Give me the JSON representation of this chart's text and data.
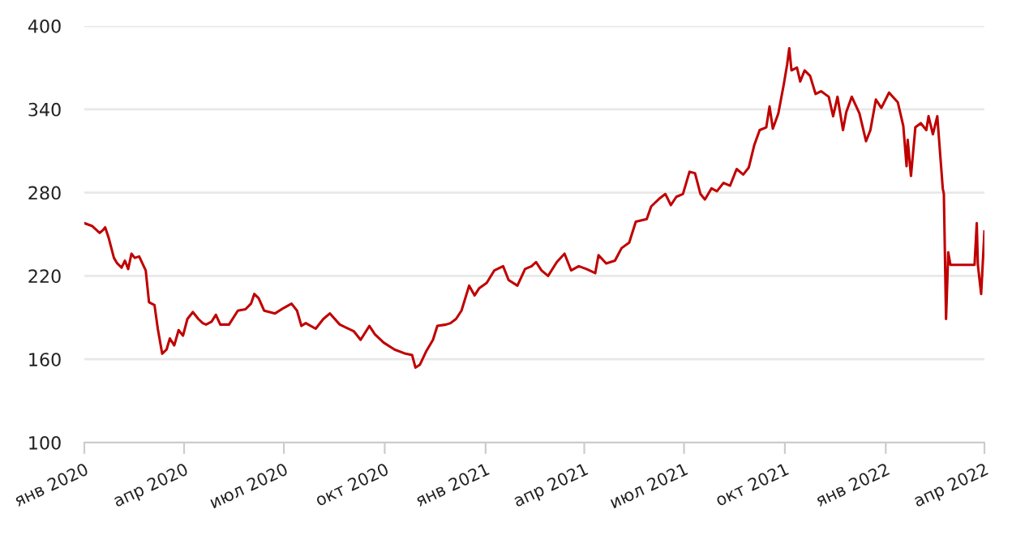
{
  "chart_data": {
    "type": "line",
    "x": [
      "2020-01-01",
      "2020-01-08",
      "2020-01-15",
      "2020-01-18",
      "2020-01-20",
      "2020-01-23",
      "2020-01-28",
      "2020-01-31",
      "2020-02-04",
      "2020-02-07",
      "2020-02-10",
      "2020-02-13",
      "2020-02-16",
      "2020-02-20",
      "2020-02-26",
      "2020-02-29",
      "2020-03-05",
      "2020-03-08",
      "2020-03-12",
      "2020-03-16",
      "2020-03-19",
      "2020-03-23",
      "2020-03-27",
      "2020-03-31",
      "2020-04-04",
      "2020-04-09",
      "2020-04-14",
      "2020-04-18",
      "2020-04-21",
      "2020-04-26",
      "2020-04-30",
      "2020-05-04",
      "2020-05-12",
      "2020-05-20",
      "2020-05-27",
      "2020-06-01",
      "2020-06-04",
      "2020-06-08",
      "2020-06-13",
      "2020-06-23",
      "2020-07-01",
      "2020-07-08",
      "2020-07-13",
      "2020-07-17",
      "2020-07-21",
      "2020-07-30",
      "2020-08-06",
      "2020-08-12",
      "2020-08-21",
      "2020-08-29",
      "2020-09-03",
      "2020-09-09",
      "2020-09-17",
      "2020-09-22",
      "2020-09-30",
      "2020-10-10",
      "2020-10-20",
      "2020-10-26",
      "2020-10-29",
      "2020-11-02",
      "2020-11-08",
      "2020-11-14",
      "2020-11-18",
      "2020-11-26",
      "2020-11-30",
      "2020-12-05",
      "2020-12-10",
      "2020-12-17",
      "2020-12-22",
      "2020-12-26",
      "2021-01-02",
      "2021-01-09",
      "2021-01-17",
      "2021-01-22",
      "2021-01-30",
      "2021-02-06",
      "2021-02-12",
      "2021-02-16",
      "2021-02-21",
      "2021-02-27",
      "2021-03-07",
      "2021-03-14",
      "2021-03-20",
      "2021-03-27",
      "2021-04-03",
      "2021-04-11",
      "2021-04-14",
      "2021-04-21",
      "2021-04-29",
      "2021-05-05",
      "2021-05-12",
      "2021-05-18",
      "2021-05-28",
      "2021-06-01",
      "2021-06-09",
      "2021-06-14",
      "2021-06-19",
      "2021-06-24",
      "2021-06-30",
      "2021-07-06",
      "2021-07-11",
      "2021-07-16",
      "2021-07-20",
      "2021-07-26",
      "2021-07-31",
      "2021-08-06",
      "2021-08-12",
      "2021-08-18",
      "2021-08-24",
      "2021-08-29",
      "2021-09-03",
      "2021-09-08",
      "2021-09-14",
      "2021-09-17",
      "2021-09-20",
      "2021-09-25",
      "2021-09-30",
      "2021-10-03",
      "2021-10-05",
      "2021-10-07",
      "2021-10-12",
      "2021-10-15",
      "2021-10-19",
      "2021-10-24",
      "2021-10-29",
      "2021-11-03",
      "2021-11-10",
      "2021-11-14",
      "2021-11-18",
      "2021-11-23",
      "2021-11-26",
      "2021-12-01",
      "2021-12-08",
      "2021-12-14",
      "2021-12-18",
      "2021-12-23",
      "2021-12-28",
      "2022-01-04",
      "2022-01-12",
      "2022-01-17",
      "2022-01-20",
      "2022-01-21",
      "2022-01-24",
      "2022-01-28",
      "2022-02-02",
      "2022-02-07",
      "2022-02-09",
      "2022-02-13",
      "2022-02-17",
      "2022-02-22",
      "2022-02-23",
      "2022-02-25",
      "2022-02-27",
      "2022-03-01",
      "2022-03-23",
      "2022-03-25",
      "2022-03-26",
      "2022-03-29",
      "2022-04-01"
    ],
    "series": [
      {
        "color": "#c00000",
        "values": [
          258,
          256,
          251,
          253,
          255,
          248,
          233,
          229,
          226,
          231,
          225,
          236,
          233,
          234,
          224,
          201,
          199,
          182,
          164,
          167,
          175,
          170,
          181,
          177,
          189,
          194,
          189,
          186,
          185,
          187,
          192,
          185,
          185,
          195,
          196,
          200,
          207,
          204,
          195,
          193,
          197,
          200,
          195,
          184,
          186,
          182,
          189,
          193,
          185,
          182,
          180,
          174,
          184,
          178,
          172,
          167,
          164,
          163,
          154,
          156,
          166,
          174,
          184,
          185,
          186,
          189,
          195,
          213,
          206,
          211,
          215,
          224,
          227,
          217,
          213,
          225,
          227,
          230,
          224,
          220,
          230,
          236,
          224,
          227,
          225,
          222,
          235,
          229,
          231,
          240,
          244,
          259,
          261,
          270,
          276,
          279,
          271,
          277,
          279,
          295,
          294,
          279,
          275,
          283,
          281,
          287,
          285,
          297,
          293,
          298,
          314,
          325,
          327,
          342,
          326,
          337,
          358,
          372,
          384,
          368,
          370,
          360,
          368,
          364,
          351,
          353,
          349,
          335,
          349,
          325,
          338,
          349,
          337,
          317,
          325,
          347,
          341,
          352,
          345,
          328,
          299,
          318,
          292,
          327,
          330,
          325,
          335,
          322,
          335,
          283,
          279,
          189,
          237,
          228,
          228,
          258,
          228,
          207,
          252
        ]
      }
    ],
    "xlim": [
      "2020-01-01",
      "2022-04-01"
    ],
    "xticks": [
      {
        "value": "2020-01-01",
        "label": "янв 2020"
      },
      {
        "value": "2020-04-01",
        "label": "апр 2020"
      },
      {
        "value": "2020-07-01",
        "label": "июл 2020"
      },
      {
        "value": "2020-10-01",
        "label": "окт 2020"
      },
      {
        "value": "2021-01-01",
        "label": "янв 2021"
      },
      {
        "value": "2021-04-01",
        "label": "апр 2021"
      },
      {
        "value": "2021-07-01",
        "label": "июл 2021"
      },
      {
        "value": "2021-10-01",
        "label": "окт 2021"
      },
      {
        "value": "2022-01-01",
        "label": "янв 2022"
      },
      {
        "value": "2022-04-01",
        "label": "апр 2022"
      }
    ],
    "ylim": [
      100,
      400
    ],
    "yticks": [
      100,
      160,
      220,
      280,
      340,
      400
    ],
    "grid": "y",
    "legend": false,
    "marker": "none",
    "line_style": "solid"
  }
}
